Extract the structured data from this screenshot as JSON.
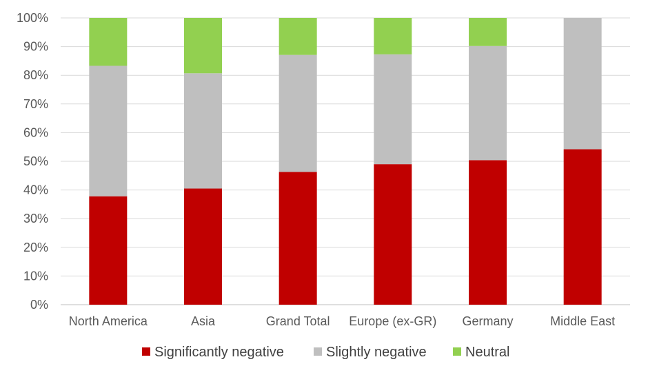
{
  "chart_data": {
    "type": "bar",
    "stacked": true,
    "percent": true,
    "categories": [
      "North America",
      "Asia",
      "Grand Total",
      "Europe (ex-GR)",
      "Germany",
      "Middle East"
    ],
    "series": [
      {
        "name": "Significantly negative",
        "color": "#c00000",
        "values": [
          37.8,
          40.5,
          46.3,
          49.0,
          50.4,
          54.2
        ]
      },
      {
        "name": "Slightly negative",
        "color": "#bfbfbf",
        "values": [
          45.5,
          40.2,
          40.8,
          38.3,
          39.8,
          45.8
        ]
      },
      {
        "name": "Neutral",
        "color": "#92d050",
        "values": [
          16.7,
          19.3,
          12.9,
          12.7,
          9.8,
          0.0
        ]
      }
    ],
    "ylim": [
      0,
      100
    ],
    "yticks": [
      "0%",
      "10%",
      "20%",
      "30%",
      "40%",
      "50%",
      "60%",
      "70%",
      "80%",
      "90%",
      "100%"
    ],
    "grid": true,
    "legend_position": "bottom"
  }
}
